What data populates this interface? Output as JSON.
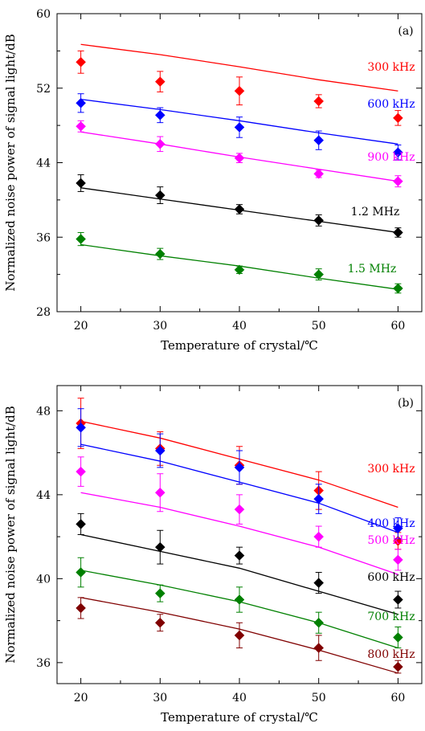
{
  "chart_data": [
    {
      "type": "scatter",
      "panel_label": "(a)",
      "xlabel": "Temperature of crystal/℃",
      "ylabel": "Normalized noise power of signal light/dB",
      "xlim": [
        17,
        63
      ],
      "ylim": [
        28,
        60
      ],
      "xticks": [
        20,
        30,
        40,
        50,
        60
      ],
      "yticks": [
        28,
        36,
        44,
        52,
        60
      ],
      "series": [
        {
          "name": "300 kHz",
          "color": "#ff0000",
          "x": [
            20,
            30,
            40,
            50,
            60
          ],
          "y": [
            54.8,
            52.7,
            51.7,
            50.6,
            48.8
          ],
          "err": [
            1.2,
            1.1,
            1.5,
            0.7,
            0.8
          ],
          "fit": [
            56.7,
            55.6,
            54.3,
            52.9,
            51.7
          ]
        },
        {
          "name": "600 kHz",
          "color": "#0000ff",
          "x": [
            20,
            30,
            40,
            50,
            60
          ],
          "y": [
            50.4,
            49.1,
            47.8,
            46.4,
            45.1
          ],
          "err": [
            1.0,
            0.8,
            1.1,
            1.0,
            0.8
          ],
          "fit": [
            50.8,
            49.7,
            48.5,
            47.2,
            46.0
          ]
        },
        {
          "name": "900 kHz",
          "color": "#ff00ff",
          "x": [
            20,
            30,
            40,
            50,
            60
          ],
          "y": [
            47.9,
            46.0,
            44.5,
            42.8,
            42.0
          ],
          "err": [
            0.6,
            0.8,
            0.5,
            0.4,
            0.6
          ],
          "fit": [
            47.3,
            46.0,
            44.6,
            43.3,
            42.0
          ]
        },
        {
          "name": "1.2 MHz",
          "color": "#000000",
          "x": [
            20,
            30,
            40,
            50,
            60
          ],
          "y": [
            41.8,
            40.5,
            39.0,
            37.8,
            36.5
          ],
          "err": [
            0.9,
            0.9,
            0.5,
            0.6,
            0.5
          ],
          "fit": [
            41.3,
            40.1,
            38.9,
            37.7,
            36.5
          ]
        },
        {
          "name": "1.5 MHz",
          "color": "#008000",
          "x": [
            20,
            30,
            40,
            50,
            60
          ],
          "y": [
            35.8,
            34.2,
            32.5,
            32.0,
            30.5
          ],
          "err": [
            0.7,
            0.6,
            0.4,
            0.6,
            0.5
          ],
          "fit": [
            35.2,
            34.0,
            32.9,
            31.6,
            30.4
          ]
        }
      ]
    },
    {
      "type": "scatter",
      "panel_label": "(b)",
      "xlabel": "Temperature of crystal/℃",
      "ylabel": "Normalized noise power of signal light/dB",
      "xlim": [
        17,
        63
      ],
      "ylim": [
        35,
        49.2
      ],
      "xticks": [
        20,
        30,
        40,
        50,
        60
      ],
      "yticks": [
        36,
        40,
        44,
        48
      ],
      "series": [
        {
          "name": "300 kHz",
          "color": "#ff0000",
          "x": [
            20,
            30,
            40,
            50,
            60
          ],
          "y": [
            47.4,
            46.2,
            45.4,
            44.2,
            41.8
          ],
          "err": [
            1.2,
            0.8,
            0.9,
            0.9,
            0.4
          ],
          "fit": [
            47.5,
            46.7,
            45.7,
            44.7,
            43.4
          ]
        },
        {
          "name": "400 kHz",
          "color": "#0000ff",
          "x": [
            20,
            30,
            40,
            50,
            60
          ],
          "y": [
            47.2,
            46.1,
            45.3,
            43.8,
            42.4
          ],
          "err": [
            0.9,
            0.8,
            0.8,
            0.7,
            0.5
          ],
          "fit": [
            46.4,
            45.6,
            44.6,
            43.6,
            42.2
          ]
        },
        {
          "name": "500 kHz",
          "color": "#ff00ff",
          "x": [
            20,
            30,
            40,
            50,
            60
          ],
          "y": [
            45.1,
            44.1,
            43.3,
            42.0,
            40.9
          ],
          "err": [
            0.7,
            0.9,
            0.7,
            0.5,
            0.5
          ],
          "fit": [
            44.1,
            43.4,
            42.5,
            41.5,
            40.2
          ]
        },
        {
          "name": "600 kHz",
          "color": "#000000",
          "x": [
            20,
            30,
            40,
            50,
            60
          ],
          "y": [
            42.6,
            41.5,
            41.1,
            39.8,
            39.0
          ],
          "err": [
            0.5,
            0.8,
            0.4,
            0.5,
            0.4
          ],
          "fit": [
            42.1,
            41.3,
            40.5,
            39.4,
            38.3
          ]
        },
        {
          "name": "700 kHz",
          "color": "#008000",
          "x": [
            20,
            30,
            40,
            50,
            60
          ],
          "y": [
            40.3,
            39.3,
            39.0,
            37.9,
            37.2
          ],
          "err": [
            0.7,
            0.4,
            0.6,
            0.5,
            0.5
          ],
          "fit": [
            40.4,
            39.7,
            38.9,
            37.9,
            36.7
          ]
        },
        {
          "name": "800 kHz",
          "color": "#800000",
          "x": [
            20,
            30,
            40,
            50,
            60
          ],
          "y": [
            38.6,
            37.9,
            37.3,
            36.7,
            35.8
          ],
          "err": [
            0.5,
            0.4,
            0.6,
            0.6,
            0.3
          ],
          "fit": [
            39.1,
            38.4,
            37.6,
            36.6,
            35.5
          ]
        }
      ]
    }
  ]
}
